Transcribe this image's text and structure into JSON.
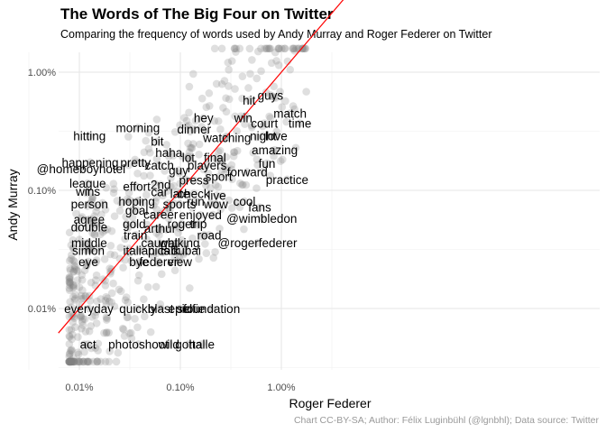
{
  "chart_data": {
    "type": "scatter",
    "title": "The Words of The Big Four on Twitter",
    "subtitle": "Comparing the frequency of words used by Andy Murray and Roger Federer on Twitter",
    "xlabel": "Roger Federer",
    "ylabel": "Andy Murray",
    "caption": "Chart CC-BY-SA; Author: Félix Luginbühl (@lgnbhl); Data source: Twitter",
    "x_scale": "log10",
    "y_scale": "log10",
    "xlim": [
      0.006,
      0.042
    ],
    "ylim": [
      0.006,
      0.0175
    ],
    "x_ticks": [
      {
        "value": 0.0001,
        "label": "0.01%"
      },
      {
        "value": 0.001,
        "label": "0.10%"
      },
      {
        "value": 0.01,
        "label": "1.00%"
      }
    ],
    "y_ticks": [
      {
        "value": 0.0001,
        "label": "0.01%"
      },
      {
        "value": 0.001,
        "label": "0.10%"
      },
      {
        "value": 0.01,
        "label": "1.00%"
      }
    ],
    "grid": true,
    "reference_line": {
      "type": "y=x",
      "color": "#ff0000"
    },
    "point_color": "#808080",
    "point_opacity": 0.25,
    "words": [
      {
        "label": "guys",
        "x": 0.0078,
        "y": 0.0064
      },
      {
        "label": "hit",
        "x": 0.0048,
        "y": 0.0058
      },
      {
        "label": "match",
        "x": 0.0122,
        "y": 0.0045
      },
      {
        "label": "win",
        "x": 0.0042,
        "y": 0.0041
      },
      {
        "label": "court",
        "x": 0.0068,
        "y": 0.0037
      },
      {
        "label": "time",
        "x": 0.0153,
        "y": 0.0037
      },
      {
        "label": "hey",
        "x": 0.0017,
        "y": 0.0041
      },
      {
        "label": "morning",
        "x": 0.00038,
        "y": 0.0034
      },
      {
        "label": "dinner",
        "x": 0.00137,
        "y": 0.0033
      },
      {
        "label": "night",
        "x": 0.0066,
        "y": 0.0029
      },
      {
        "label": "love",
        "x": 0.0089,
        "y": 0.0029
      },
      {
        "label": "hitting",
        "x": 0.000126,
        "y": 0.0029
      },
      {
        "label": "bit",
        "x": 0.00059,
        "y": 0.0026
      },
      {
        "label": "watching",
        "x": 0.0029,
        "y": 0.0028
      },
      {
        "label": "haha",
        "x": 0.00077,
        "y": 0.0021
      },
      {
        "label": "amazing",
        "x": 0.0086,
        "y": 0.0022
      },
      {
        "label": "final",
        "x": 0.0022,
        "y": 0.0019
      },
      {
        "label": "lot",
        "x": 0.0012,
        "y": 0.0019
      },
      {
        "label": "happening",
        "x": 0.000128,
        "y": 0.00173
      },
      {
        "label": "pretty",
        "x": 0.00036,
        "y": 0.00173
      },
      {
        "label": "fun",
        "x": 0.0072,
        "y": 0.0017
      },
      {
        "label": "catch",
        "x": 0.00062,
        "y": 0.00164
      },
      {
        "label": "players",
        "x": 0.00184,
        "y": 0.00164
      },
      {
        "label": "@homeboyhotel",
        "x": 0.000104,
        "y": 0.00152
      },
      {
        "label": "guy",
        "x": 0.00096,
        "y": 0.00148
      },
      {
        "label": "forward",
        "x": 0.0046,
        "y": 0.00144
      },
      {
        "label": "sport",
        "x": 0.0024,
        "y": 0.00131
      },
      {
        "label": "practice",
        "x": 0.0114,
        "y": 0.00124
      },
      {
        "label": "press",
        "x": 0.00136,
        "y": 0.00122
      },
      {
        "label": "league",
        "x": 0.000121,
        "y": 0.00115
      },
      {
        "label": "effort",
        "x": 0.00037,
        "y": 0.00108
      },
      {
        "label": "2nd",
        "x": 0.00064,
        "y": 0.00112
      },
      {
        "label": "wins",
        "x": 0.000122,
        "y": 0.00098
      },
      {
        "label": "car",
        "x": 0.00062,
        "y": 0.00097
      },
      {
        "label": "late",
        "x": 0.00099,
        "y": 0.00094
      },
      {
        "label": "check",
        "x": 0.00136,
        "y": 0.00094
      },
      {
        "label": "live",
        "x": 0.0023,
        "y": 0.00091
      },
      {
        "label": "hoping",
        "x": 0.00037,
        "y": 0.00081
      },
      {
        "label": "run",
        "x": 0.00142,
        "y": 0.00081
      },
      {
        "label": "cool",
        "x": 0.0043,
        "y": 0.00081
      },
      {
        "label": "person",
        "x": 0.000126,
        "y": 0.00077
      },
      {
        "label": "sports",
        "x": 0.00098,
        "y": 0.00077
      },
      {
        "label": "wow",
        "x": 0.00225,
        "y": 0.00077
      },
      {
        "label": "fans",
        "x": 0.0061,
        "y": 0.00072
      },
      {
        "label": "goal",
        "x": 0.00037,
        "y": 0.00068
      },
      {
        "label": "career",
        "x": 0.00064,
        "y": 0.00063
      },
      {
        "label": "enjoyed",
        "x": 0.00158,
        "y": 0.00062
      },
      {
        "label": "agree",
        "x": 0.000125,
        "y": 0.00057
      },
      {
        "label": "@wimbledon",
        "x": 0.0064,
        "y": 0.00058
      },
      {
        "label": "gold",
        "x": 0.00035,
        "y": 0.00052
      },
      {
        "label": "roger",
        "x": 0.00103,
        "y": 0.00052
      },
      {
        "label": "trip",
        "x": 0.00151,
        "y": 0.00052
      },
      {
        "label": "double",
        "x": 0.000125,
        "y": 0.00049
      },
      {
        "label": "arthur",
        "x": 0.00063,
        "y": 0.00048
      },
      {
        "label": "train",
        "x": 0.00036,
        "y": 0.00042
      },
      {
        "label": "road",
        "x": 0.00193,
        "y": 0.00042
      },
      {
        "label": "middle",
        "x": 0.000125,
        "y": 0.00036
      },
      {
        "label": "caught",
        "x": 0.00062,
        "y": 0.00036
      },
      {
        "label": "walking",
        "x": 0.00098,
        "y": 0.00036
      },
      {
        "label": "@rogerfederer",
        "x": 0.0058,
        "y": 0.00036
      },
      {
        "label": "simon",
        "x": 0.000123,
        "y": 0.00031
      },
      {
        "label": "italian",
        "x": 0.00039,
        "y": 0.00031
      },
      {
        "label": "pics",
        "x": 0.00061,
        "y": 0.00031
      },
      {
        "label": "talk",
        "x": 0.00079,
        "y": 0.00031
      },
      {
        "label": "dubai",
        "x": 0.00114,
        "y": 0.00031
      },
      {
        "label": "eye",
        "x": 0.000123,
        "y": 0.00025
      },
      {
        "label": "bye",
        "x": 0.00039,
        "y": 0.00025
      },
      {
        "label": "federer",
        "x": 0.00061,
        "y": 0.00025
      },
      {
        "label": "view",
        "x": 0.00099,
        "y": 0.00025
      },
      {
        "label": "everyday",
        "x": 0.000124,
        "y": 0.0001
      },
      {
        "label": "quickly",
        "x": 0.00038,
        "y": 0.0001
      },
      {
        "label": "blast",
        "x": 0.00064,
        "y": 0.0001
      },
      {
        "label": "epic",
        "x": 0.00098,
        "y": 0.0001
      },
      {
        "label": "selfie",
        "x": 0.00127,
        "y": 0.0001
      },
      {
        "label": "foundation",
        "x": 0.00204,
        "y": 0.0001
      },
      {
        "label": "act",
        "x": 0.000122,
        "y": 5e-05
      },
      {
        "label": "photoshoot",
        "x": 0.000385,
        "y": 5e-05
      },
      {
        "label": "wild",
        "x": 0.00077,
        "y": 5e-05
      },
      {
        "label": "gotta",
        "x": 0.00121,
        "y": 5e-05
      },
      {
        "label": "halle",
        "x": 0.00163,
        "y": 5e-05
      }
    ]
  }
}
